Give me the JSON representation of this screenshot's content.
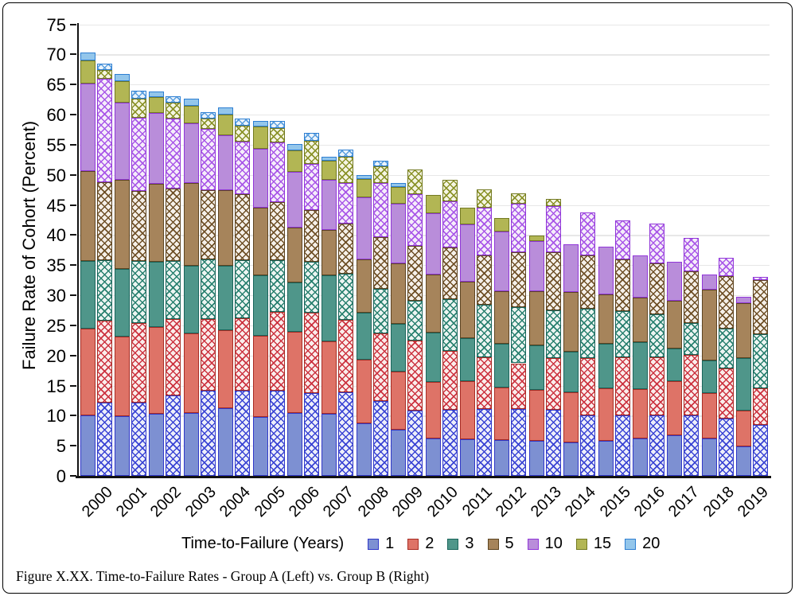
{
  "figure": {
    "y_axis_title": "Failure Rate of Cohort (Percent)",
    "legend_title": "Time-to-Failure (Years)",
    "caption": "Figure X.XX. Time-to-Failure Rates - Group A (Left) vs. Group B (Right)",
    "group_note": "Each year shows two stacked bars: Group A (solid, left) and Group B (cross-hatched, right)"
  },
  "chart_data": {
    "type": "bar",
    "stacked": true,
    "grouped_pairs": true,
    "ylabel": "Failure Rate of Cohort (Percent)",
    "ylim": [
      0,
      75
    ],
    "ytick_step": 5,
    "grid": true,
    "legend_position": "bottom",
    "legend_title": "Time-to-Failure (Years)",
    "categories": [
      "2000",
      "2001",
      "2002",
      "2003",
      "2004",
      "2005",
      "2006",
      "2007",
      "2008",
      "2009",
      "2010",
      "2011",
      "2012",
      "2013",
      "2014",
      "2015",
      "2016",
      "2017",
      "2018",
      "2019"
    ],
    "series_labels": [
      "1",
      "2",
      "3",
      "5",
      "10",
      "15",
      "20"
    ],
    "colors": {
      "1": {
        "fill": "#7d90d2",
        "edge": "#3038c8",
        "hatch": "#3a44d4",
        "tint": "#edeffa"
      },
      "2": {
        "fill": "#de7367",
        "edge": "#a82c24",
        "hatch": "#cc3340",
        "tint": "#faedeb"
      },
      "3": {
        "fill": "#4f968a",
        "edge": "#1a655b",
        "hatch": "#28806f",
        "tint": "#edf5f2"
      },
      "5": {
        "fill": "#a6845b",
        "edge": "#5d4421",
        "hatch": "#6e4f26",
        "tint": "#f5f0e9"
      },
      "10": {
        "fill": "#b98dda",
        "edge": "#9137d8",
        "hatch": "#a957e8",
        "tint": "#f5edfa"
      },
      "15": {
        "fill": "#b2b654",
        "edge": "#737a22",
        "hatch": "#8a9228",
        "tint": "#f5f5e4"
      },
      "20": {
        "fill": "#93c6eb",
        "edge": "#2e7fd2",
        "hatch": "#5b9fdf",
        "tint": "#ebf4fc"
      }
    },
    "group_a": {
      "name": "Group A",
      "style": "solid",
      "values": {
        "1": [
          10.0,
          9.9,
          10.3,
          10.5,
          11.2,
          9.8,
          10.4,
          10.3,
          8.7,
          7.6,
          6.2,
          6.1,
          5.9,
          5.8,
          5.5,
          5.8,
          6.2,
          6.8,
          6.2,
          4.9
        ],
        "2": [
          14.5,
          13.2,
          14.4,
          13.2,
          13.0,
          13.4,
          13.5,
          12.0,
          10.6,
          9.7,
          9.4,
          9.6,
          8.8,
          8.5,
          8.4,
          8.8,
          8.2,
          8.9,
          7.5,
          6.0
        ],
        "3": [
          11.2,
          11.3,
          10.8,
          11.2,
          10.7,
          10.1,
          8.2,
          11.0,
          7.8,
          8.0,
          8.2,
          7.1,
          7.3,
          7.4,
          6.7,
          7.3,
          7.8,
          5.5,
          5.5,
          8.6
        ],
        "5": [
          14.9,
          14.8,
          13.0,
          13.7,
          12.5,
          11.3,
          9.1,
          7.6,
          8.9,
          10.0,
          9.6,
          9.4,
          8.6,
          8.9,
          9.9,
          8.2,
          7.4,
          7.9,
          11.7,
          9.2
        ],
        "10": [
          14.5,
          12.8,
          11.8,
          9.9,
          9.1,
          9.7,
          9.3,
          8.3,
          10.3,
          9.9,
          10.2,
          9.5,
          10.0,
          8.4,
          8.0,
          8.0,
          7.0,
          6.5,
          2.5,
          1.1
        ],
        "15": [
          3.9,
          3.6,
          2.6,
          3.0,
          3.5,
          3.7,
          3.5,
          3.1,
          3.0,
          2.8,
          3.0,
          2.9,
          2.2,
          0.9,
          0,
          0,
          0,
          0,
          0,
          0
        ],
        "20": [
          1.3,
          1.2,
          0.9,
          1.1,
          1.2,
          0.9,
          1.1,
          0.7,
          0.7,
          0.7,
          0,
          0,
          0,
          0,
          0,
          0,
          0,
          0,
          0,
          0
        ]
      }
    },
    "group_b": {
      "name": "Group B",
      "style": "crosshatch",
      "values": {
        "1": [
          12.2,
          12.1,
          13.3,
          14.1,
          14.2,
          14.1,
          13.7,
          13.9,
          12.4,
          10.9,
          11.0,
          11.1,
          11.1,
          11.0,
          10.0,
          10.0,
          10.0,
          10.0,
          9.5,
          8.5
        ],
        "2": [
          13.6,
          13.3,
          12.7,
          12.0,
          12.0,
          13.1,
          13.4,
          12.0,
          11.2,
          11.6,
          9.8,
          8.6,
          7.6,
          8.5,
          9.6,
          9.7,
          9.7,
          10.1,
          8.3,
          6.1
        ],
        "3": [
          10.0,
          10.3,
          9.7,
          9.9,
          9.6,
          8.6,
          8.5,
          7.7,
          7.5,
          6.6,
          8.6,
          8.7,
          9.3,
          8.0,
          8.2,
          7.7,
          7.1,
          5.3,
          6.6,
          8.9
        ],
        "5": [
          13.0,
          11.6,
          12.0,
          11.4,
          11.0,
          9.7,
          8.6,
          8.3,
          8.6,
          9.1,
          8.5,
          8.2,
          9.2,
          9.7,
          8.8,
          8.6,
          8.5,
          8.6,
          8.8,
          9.0
        ],
        "10": [
          17.2,
          12.2,
          11.7,
          10.2,
          8.7,
          9.9,
          7.6,
          6.7,
          8.9,
          8.6,
          7.7,
          8.0,
          8.0,
          7.6,
          7.2,
          6.4,
          6.6,
          5.5,
          3.0,
          0.6
        ],
        "15": [
          1.4,
          3.1,
          2.6,
          1.7,
          2.6,
          2.3,
          3.8,
          4.4,
          2.8,
          4.1,
          3.6,
          3.0,
          1.7,
          1.2,
          0,
          0,
          0,
          0,
          0,
          0
        ],
        "20": [
          1.1,
          1.3,
          1.1,
          1.1,
          1.2,
          1.2,
          1.3,
          1.2,
          0.9,
          0,
          0,
          0,
          0,
          0,
          0,
          0,
          0,
          0,
          0,
          0
        ]
      }
    }
  }
}
